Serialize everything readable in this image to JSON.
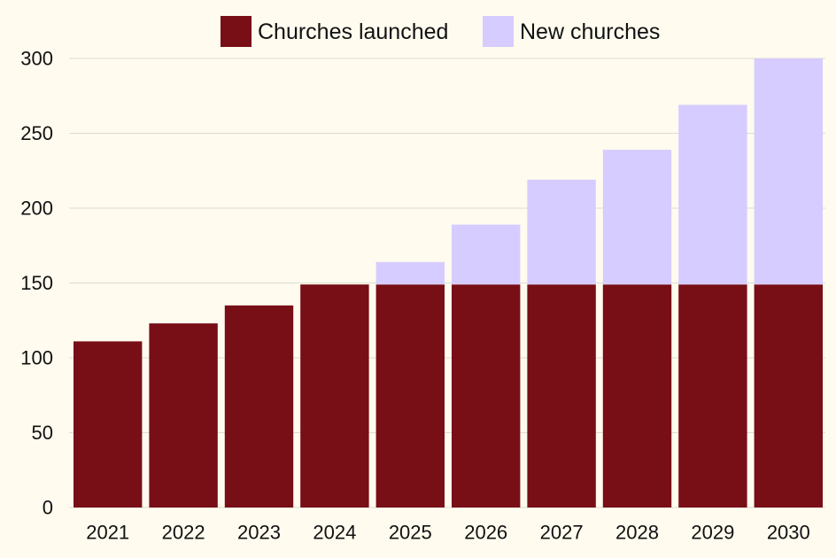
{
  "chart_data": {
    "type": "bar",
    "stacked": true,
    "categories": [
      "2021",
      "2022",
      "2023",
      "2024",
      "2025",
      "2026",
      "2027",
      "2028",
      "2029",
      "2030"
    ],
    "series": [
      {
        "name": "Churches launched",
        "color": "#780e16",
        "values": [
          111,
          123,
          135,
          149,
          149,
          149,
          149,
          149,
          149,
          149
        ]
      },
      {
        "name": "New churches",
        "color": "#d6ccff",
        "values": [
          0,
          0,
          0,
          0,
          15,
          40,
          70,
          90,
          120,
          151
        ]
      }
    ],
    "title": "",
    "xlabel": "",
    "ylabel": "",
    "ylim": [
      0,
      300
    ],
    "yticks": [
      0,
      50,
      100,
      150,
      200,
      250,
      300
    ],
    "grid": "horizontal",
    "legend_position": "top-center"
  }
}
